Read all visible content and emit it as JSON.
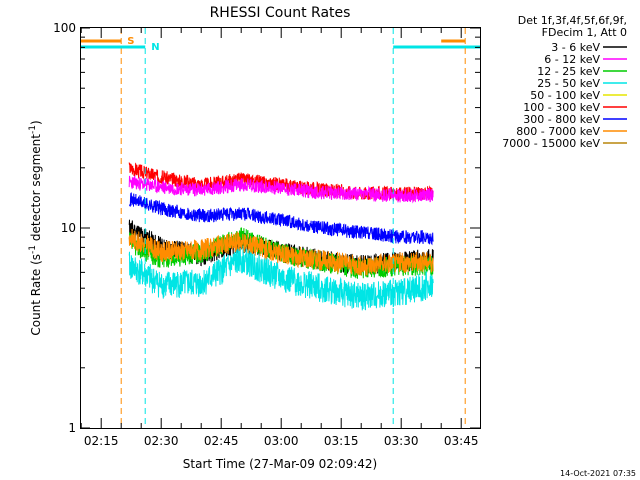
{
  "chart_data": {
    "type": "line",
    "title": "RHESSI Count Rates",
    "xlabel": "Start Time (27-Mar-09 02:09:42)",
    "ylabel_parts": [
      "Count Rate (s",
      "-1",
      " detector segment",
      "-1",
      ")"
    ],
    "yscale": "log",
    "ylim": [
      1,
      100
    ],
    "xlim": [
      "02:09:42",
      "03:49:42"
    ],
    "x_tick_labels": [
      "02:15",
      "02:30",
      "02:45",
      "03:00",
      "03:15",
      "03:30",
      "03:45"
    ],
    "y_tick_labels": [
      "1",
      "10",
      "100"
    ],
    "legend_title": [
      "Det 1f,3f,4f,5f,6f,9f,",
      "FDecim 1, Att 0"
    ],
    "legend_position": "outside-right",
    "series": [
      {
        "name": "3 - 6 keV",
        "color": "#000000",
        "x": [
          "02:22",
          "02:30",
          "02:40",
          "02:50",
          "03:00",
          "03:10",
          "03:20",
          "03:30",
          "03:38"
        ],
        "values": [
          10.0,
          8.0,
          7.3,
          8.5,
          7.6,
          6.9,
          6.5,
          6.8,
          7.0
        ]
      },
      {
        "name": "6 - 12 keV",
        "color": "#ff00ff",
        "x": [
          "02:22",
          "02:30",
          "02:40",
          "02:50",
          "03:00",
          "03:10",
          "03:20",
          "03:30",
          "03:38"
        ],
        "values": [
          17.0,
          16.0,
          15.5,
          16.5,
          15.8,
          15.0,
          14.8,
          14.5,
          14.7
        ]
      },
      {
        "name": "12 - 25 keV",
        "color": "#00cc00",
        "x": [
          "02:22",
          "02:30",
          "02:40",
          "02:50",
          "03:00",
          "03:10",
          "03:20",
          "03:30",
          "03:38"
        ],
        "values": [
          8.5,
          7.0,
          7.5,
          9.0,
          7.5,
          6.8,
          6.2,
          6.5,
          6.5
        ]
      },
      {
        "name": "25 - 50 keV",
        "color": "#00e5e5",
        "x": [
          "02:22",
          "02:30",
          "02:40",
          "02:50",
          "03:00",
          "03:10",
          "03:20",
          "03:30",
          "03:38"
        ],
        "values": [
          6.5,
          5.2,
          5.3,
          7.0,
          5.6,
          5.0,
          4.5,
          4.8,
          5.2
        ]
      },
      {
        "name": "50 - 100 keV",
        "color": "#e5e500",
        "x": [],
        "values": []
      },
      {
        "name": "100 - 300 keV",
        "color": "#ff0000",
        "x": [
          "02:22",
          "02:30",
          "02:40",
          "02:50",
          "03:00",
          "03:10",
          "03:20",
          "03:30",
          "03:38"
        ],
        "values": [
          20.0,
          18.0,
          16.5,
          17.5,
          16.5,
          15.5,
          15.0,
          14.8,
          15.0
        ]
      },
      {
        "name": "300 - 800 keV",
        "color": "#0000ff",
        "x": [
          "02:22",
          "02:30",
          "02:40",
          "02:50",
          "03:00",
          "03:10",
          "03:20",
          "03:30",
          "03:38"
        ],
        "values": [
          14.0,
          12.5,
          11.5,
          11.8,
          11.0,
          10.0,
          9.5,
          9.0,
          9.0
        ]
      },
      {
        "name": "800 - 7000 keV",
        "color": "#ff8c00",
        "x": [
          "02:22",
          "02:30",
          "02:40",
          "02:50",
          "03:00",
          "03:10",
          "03:20",
          "03:30",
          "03:38"
        ],
        "values": [
          9.0,
          7.6,
          7.8,
          8.6,
          7.4,
          6.9,
          6.5,
          6.7,
          6.8
        ]
      },
      {
        "name": "7000 - 15000 keV",
        "color": "#b8860b",
        "x": [],
        "values": []
      }
    ],
    "markers": [
      {
        "label": "S",
        "color": "#ff8c00",
        "time": "02:20:00",
        "bar_to": "02:09:42"
      },
      {
        "label": "N",
        "color": "#00e5e5",
        "time": "02:26:00",
        "bar_to": "02:09:42"
      },
      {
        "label": "",
        "color": "#00e5e5",
        "time": "03:28:00",
        "bar_to": "03:49:42"
      },
      {
        "label": "",
        "color": "#ff8c00",
        "time": "03:46:00",
        "bar_to": "03:40:00"
      }
    ],
    "grid": false
  },
  "footer": {
    "timestamp": "14-Oct-2021 07:35"
  }
}
